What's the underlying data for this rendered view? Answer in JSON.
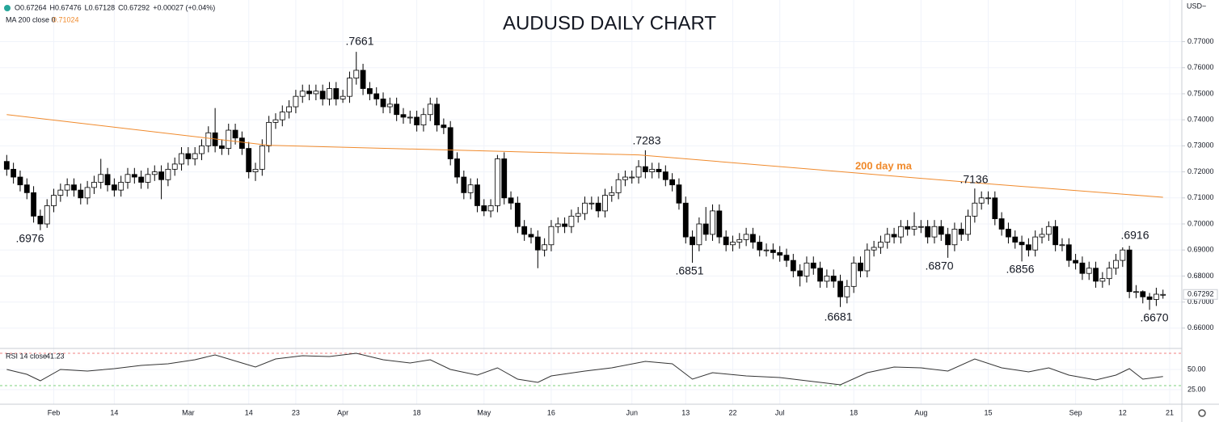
{
  "chart_data": [
    {
      "type": "candlestick",
      "title": "AUDUSD DAILY CHART",
      "axis_unit": "USD~",
      "header": [
        "O0.67264",
        "H0.67476",
        "L0.67128",
        "C0.67292",
        "+0.00027 (+0.04%)"
      ],
      "up_color": "#ffffff",
      "down_color": "#000000",
      "grid": true,
      "xlim": [
        -1,
        174.8
      ],
      "xticks": [
        {
          "value": 7,
          "label": "Feb"
        },
        {
          "value": 16,
          "label": "14"
        },
        {
          "value": 27,
          "label": "Mar"
        },
        {
          "value": 36,
          "label": "14"
        },
        {
          "value": 43,
          "label": "23"
        },
        {
          "value": 50,
          "label": "Apr"
        },
        {
          "value": 61,
          "label": "18"
        },
        {
          "value": 71,
          "label": "May"
        },
        {
          "value": 81,
          "label": "16"
        },
        {
          "value": 93,
          "label": "Jun"
        },
        {
          "value": 101,
          "label": "13"
        },
        {
          "value": 108,
          "label": "22"
        },
        {
          "value": 115,
          "label": "Jul"
        },
        {
          "value": 126,
          "label": "18"
        },
        {
          "value": 136,
          "label": "Aug"
        },
        {
          "value": 146,
          "label": "15"
        },
        {
          "value": 159,
          "label": "Sep"
        },
        {
          "value": 166,
          "label": "12"
        },
        {
          "value": 173,
          "label": "21"
        }
      ],
      "ylim": [
        0.6525,
        0.786
      ],
      "yticks": [
        {
          "value": 0.66,
          "label": "0.66000"
        },
        {
          "value": 0.67,
          "label": "0.67000"
        },
        {
          "value": 0.68,
          "label": "0.68000"
        },
        {
          "value": 0.69,
          "label": "0.69000"
        },
        {
          "value": 0.7,
          "label": "0.70000"
        },
        {
          "value": 0.71,
          "label": "0.71000"
        },
        {
          "value": 0.72,
          "label": "0.72000"
        },
        {
          "value": 0.73,
          "label": "0.73000"
        },
        {
          "value": 0.74,
          "label": "0.74000"
        },
        {
          "value": 0.75,
          "label": "0.75000"
        },
        {
          "value": 0.76,
          "label": "0.76000"
        },
        {
          "value": 0.77,
          "label": "0.77000"
        }
      ],
      "last_price": {
        "value": 0.67292,
        "label": "0.67292"
      },
      "open": [
        0.724,
        0.721,
        0.718,
        0.715,
        0.712,
        0.703,
        0.7,
        0.707,
        0.711,
        0.713,
        0.715,
        0.713,
        0.71,
        0.714,
        0.716,
        0.719,
        0.715,
        0.713,
        0.716,
        0.719,
        0.718,
        0.716,
        0.719,
        0.72,
        0.717,
        0.721,
        0.723,
        0.727,
        0.725,
        0.727,
        0.73,
        0.735,
        0.73,
        0.729,
        0.736,
        0.733,
        0.729,
        0.72,
        0.721,
        0.73,
        0.739,
        0.74,
        0.743,
        0.745,
        0.749,
        0.751,
        0.75,
        0.751,
        0.748,
        0.752,
        0.748,
        0.749,
        0.756,
        0.759,
        0.752,
        0.75,
        0.748,
        0.745,
        0.746,
        0.742,
        0.741,
        0.741,
        0.738,
        0.742,
        0.746,
        0.738,
        0.737,
        0.725,
        0.718,
        0.712,
        0.715,
        0.707,
        0.705,
        0.707,
        0.725,
        0.71,
        0.708,
        0.699,
        0.696,
        0.695,
        0.69,
        0.692,
        0.699,
        0.7,
        0.699,
        0.703,
        0.704,
        0.708,
        0.708,
        0.705,
        0.711,
        0.712,
        0.717,
        0.718,
        0.718,
        0.722,
        0.72,
        0.721,
        0.72,
        0.717,
        0.715,
        0.708,
        0.695,
        0.692,
        0.7,
        0.696,
        0.705,
        0.695,
        0.692,
        0.693,
        0.694,
        0.696,
        0.693,
        0.69,
        0.69,
        0.689,
        0.688,
        0.686,
        0.682,
        0.68,
        0.685,
        0.683,
        0.678,
        0.68,
        0.678,
        0.672,
        0.676,
        0.685,
        0.682,
        0.69,
        0.691,
        0.693,
        0.696,
        0.695,
        0.699,
        0.698,
        0.699,
        0.699,
        0.695,
        0.699,
        0.696,
        0.692,
        0.698,
        0.696,
        0.703,
        0.708,
        0.71,
        0.71,
        0.702,
        0.698,
        0.695,
        0.693,
        0.692,
        0.69,
        0.695,
        0.696,
        0.699,
        0.692,
        0.692,
        0.686,
        0.685,
        0.681,
        0.683,
        0.678,
        0.679,
        0.683,
        0.686,
        0.69,
        0.674,
        0.674,
        0.672,
        0.671,
        0.67264
      ],
      "high": [
        0.7265,
        0.7235,
        0.7205,
        0.7175,
        0.7145,
        0.7055,
        0.7095,
        0.7135,
        0.7155,
        0.7175,
        0.7175,
        0.7155,
        0.7165,
        0.7185,
        0.725,
        0.7215,
        0.7175,
        0.7185,
        0.7215,
        0.7215,
        0.7205,
        0.7215,
        0.7225,
        0.7225,
        0.7235,
        0.7255,
        0.7295,
        0.7295,
        0.7295,
        0.7325,
        0.7375,
        0.7445,
        0.7325,
        0.7385,
        0.7385,
        0.7355,
        0.7315,
        0.7235,
        0.7325,
        0.7415,
        0.7425,
        0.7455,
        0.7475,
        0.7515,
        0.7535,
        0.7535,
        0.7535,
        0.7535,
        0.7545,
        0.7545,
        0.7515,
        0.7585,
        0.7661,
        0.7615,
        0.7545,
        0.7525,
        0.7505,
        0.7485,
        0.7485,
        0.7445,
        0.7435,
        0.7435,
        0.7445,
        0.7485,
        0.7485,
        0.7405,
        0.7395,
        0.7275,
        0.7205,
        0.7175,
        0.7175,
        0.7095,
        0.7095,
        0.7265,
        0.7275,
        0.7125,
        0.7105,
        0.7015,
        0.6985,
        0.6975,
        0.6945,
        0.7015,
        0.7025,
        0.7025,
        0.7055,
        0.7065,
        0.7105,
        0.7105,
        0.7105,
        0.7135,
        0.7145,
        0.7195,
        0.7205,
        0.7205,
        0.7245,
        0.7283,
        0.7235,
        0.7235,
        0.7225,
        0.7195,
        0.7175,
        0.7105,
        0.6975,
        0.7025,
        0.7065,
        0.7075,
        0.7075,
        0.6975,
        0.6955,
        0.6965,
        0.6985,
        0.6985,
        0.6955,
        0.6925,
        0.6925,
        0.6915,
        0.6905,
        0.6885,
        0.6845,
        0.6875,
        0.6875,
        0.6855,
        0.6825,
        0.6825,
        0.6805,
        0.6785,
        0.6875,
        0.6875,
        0.6925,
        0.6935,
        0.6955,
        0.6985,
        0.6985,
        0.7015,
        0.7015,
        0.7045,
        0.7015,
        0.7015,
        0.7015,
        0.7015,
        0.6985,
        0.7005,
        0.7005,
        0.7055,
        0.7136,
        0.7125,
        0.7125,
        0.7125,
        0.7045,
        0.7005,
        0.6975,
        0.6955,
        0.6945,
        0.6975,
        0.6985,
        0.701,
        0.7015,
        0.6945,
        0.6945,
        0.6885,
        0.6875,
        0.6855,
        0.6855,
        0.6815,
        0.6855,
        0.6885,
        0.691,
        0.6916,
        0.6765,
        0.6745,
        0.6735,
        0.6755,
        0.67476
      ],
      "low": [
        0.7185,
        0.7155,
        0.7125,
        0.7095,
        0.7005,
        0.6976,
        0.6985,
        0.7045,
        0.7085,
        0.7105,
        0.7105,
        0.7075,
        0.7075,
        0.7115,
        0.7135,
        0.7125,
        0.7105,
        0.7105,
        0.7135,
        0.7155,
        0.7135,
        0.7135,
        0.7165,
        0.7095,
        0.7145,
        0.7185,
        0.7205,
        0.7225,
        0.7225,
        0.7245,
        0.7275,
        0.7275,
        0.7265,
        0.7265,
        0.7305,
        0.7265,
        0.7175,
        0.7165,
        0.7185,
        0.7275,
        0.7365,
        0.7375,
        0.7405,
        0.7425,
        0.7465,
        0.7475,
        0.7475,
        0.7455,
        0.7455,
        0.7455,
        0.7465,
        0.7465,
        0.7535,
        0.7495,
        0.7475,
        0.7455,
        0.7425,
        0.7425,
        0.7395,
        0.7385,
        0.7385,
        0.7355,
        0.7355,
        0.7395,
        0.7355,
        0.7345,
        0.7225,
        0.7155,
        0.7095,
        0.7095,
        0.7045,
        0.703,
        0.7025,
        0.7045,
        0.7075,
        0.7055,
        0.6965,
        0.6935,
        0.6925,
        0.683,
        0.6875,
        0.6895,
        0.6965,
        0.6965,
        0.6965,
        0.7005,
        0.7015,
        0.7055,
        0.7025,
        0.7025,
        0.7085,
        0.7095,
        0.7145,
        0.7155,
        0.7155,
        0.7175,
        0.7175,
        0.7175,
        0.7145,
        0.7125,
        0.7055,
        0.6925,
        0.6851,
        0.6895,
        0.6935,
        0.6935,
        0.6925,
        0.6895,
        0.6895,
        0.6905,
        0.6915,
        0.6905,
        0.6875,
        0.6875,
        0.6865,
        0.6855,
        0.6835,
        0.6795,
        0.676,
        0.6775,
        0.6805,
        0.6755,
        0.6755,
        0.6755,
        0.6681,
        0.6695,
        0.6735,
        0.6795,
        0.6795,
        0.6875,
        0.6885,
        0.6905,
        0.6925,
        0.6925,
        0.6955,
        0.6955,
        0.6965,
        0.6925,
        0.6925,
        0.6935,
        0.687,
        0.6895,
        0.6935,
        0.6935,
        0.7005,
        0.7055,
        0.7075,
        0.6995,
        0.6955,
        0.6925,
        0.6905,
        0.6856,
        0.6875,
        0.6875,
        0.6925,
        0.6935,
        0.6895,
        0.6895,
        0.6835,
        0.6825,
        0.6785,
        0.6785,
        0.6755,
        0.6755,
        0.6765,
        0.6805,
        0.6835,
        0.6715,
        0.6715,
        0.6695,
        0.667,
        0.6685,
        0.67128
      ],
      "close": [
        0.721,
        0.718,
        0.715,
        0.712,
        0.703,
        0.7,
        0.707,
        0.711,
        0.713,
        0.715,
        0.713,
        0.71,
        0.714,
        0.716,
        0.719,
        0.715,
        0.713,
        0.716,
        0.719,
        0.718,
        0.716,
        0.719,
        0.72,
        0.717,
        0.721,
        0.723,
        0.727,
        0.725,
        0.727,
        0.73,
        0.735,
        0.73,
        0.729,
        0.736,
        0.733,
        0.729,
        0.72,
        0.721,
        0.73,
        0.739,
        0.74,
        0.743,
        0.745,
        0.749,
        0.751,
        0.75,
        0.751,
        0.748,
        0.752,
        0.748,
        0.749,
        0.756,
        0.759,
        0.752,
        0.75,
        0.748,
        0.745,
        0.746,
        0.742,
        0.741,
        0.741,
        0.738,
        0.742,
        0.746,
        0.738,
        0.737,
        0.725,
        0.718,
        0.712,
        0.715,
        0.707,
        0.705,
        0.707,
        0.725,
        0.71,
        0.708,
        0.699,
        0.696,
        0.695,
        0.69,
        0.692,
        0.699,
        0.7,
        0.699,
        0.703,
        0.704,
        0.708,
        0.708,
        0.705,
        0.711,
        0.712,
        0.717,
        0.718,
        0.718,
        0.722,
        0.72,
        0.721,
        0.72,
        0.717,
        0.715,
        0.708,
        0.695,
        0.692,
        0.7,
        0.696,
        0.705,
        0.695,
        0.692,
        0.693,
        0.694,
        0.696,
        0.693,
        0.69,
        0.69,
        0.689,
        0.688,
        0.686,
        0.682,
        0.68,
        0.685,
        0.683,
        0.678,
        0.68,
        0.678,
        0.672,
        0.676,
        0.685,
        0.682,
        0.69,
        0.691,
        0.693,
        0.696,
        0.695,
        0.699,
        0.698,
        0.699,
        0.699,
        0.695,
        0.699,
        0.696,
        0.692,
        0.698,
        0.696,
        0.703,
        0.708,
        0.71,
        0.71,
        0.702,
        0.698,
        0.695,
        0.693,
        0.692,
        0.69,
        0.695,
        0.696,
        0.699,
        0.692,
        0.692,
        0.686,
        0.685,
        0.681,
        0.683,
        0.678,
        0.679,
        0.683,
        0.686,
        0.69,
        0.674,
        0.674,
        0.672,
        0.671,
        0.673,
        0.67292
      ],
      "ma": {
        "name": "MA 200 close 0",
        "value_label": "0.71024",
        "label": "200 day ma",
        "color": "#f08a2c",
        "x": [
          0,
          39,
          94,
          145,
          172
        ],
        "values": [
          0.742,
          0.7302,
          0.7265,
          0.7156,
          0.71024
        ]
      },
      "annotations": [
        ".7661",
        ".6976",
        ".7283",
        ".6851",
        ".6681",
        ".6870",
        ".7136",
        ".6856",
        ".6916",
        ".6670"
      ]
    },
    {
      "type": "line",
      "name": "RSI 14 close",
      "value_label": "41.23",
      "color": "#333333",
      "xlim": [
        -1,
        174.8
      ],
      "ylim": [
        7,
        75
      ],
      "yticks": [
        {
          "value": 50,
          "label": "50.00"
        },
        {
          "value": 25,
          "label": "25.00"
        }
      ],
      "levels": [
        30,
        70
      ],
      "x": [
        0,
        3,
        5,
        8,
        12,
        16,
        20,
        24,
        28,
        31,
        35,
        37,
        40,
        44,
        48,
        52,
        56,
        60,
        63,
        66,
        70,
        73,
        76,
        79,
        81,
        86,
        90,
        95,
        99,
        102,
        105,
        110,
        115,
        120,
        124,
        128,
        132,
        136,
        140,
        144,
        148,
        152,
        155,
        158,
        162,
        165,
        167,
        169,
        172
      ],
      "values": [
        50,
        44,
        36,
        50,
        48,
        51,
        55,
        57,
        62,
        68,
        58,
        53,
        63,
        67,
        66,
        70,
        62,
        58,
        62,
        50,
        43,
        52,
        38,
        34,
        42,
        48,
        52,
        60,
        57,
        38,
        46,
        42,
        40,
        35,
        31,
        46,
        53,
        52,
        48,
        63,
        52,
        47,
        52,
        43,
        37,
        43,
        51,
        38,
        41.23
      ]
    }
  ]
}
